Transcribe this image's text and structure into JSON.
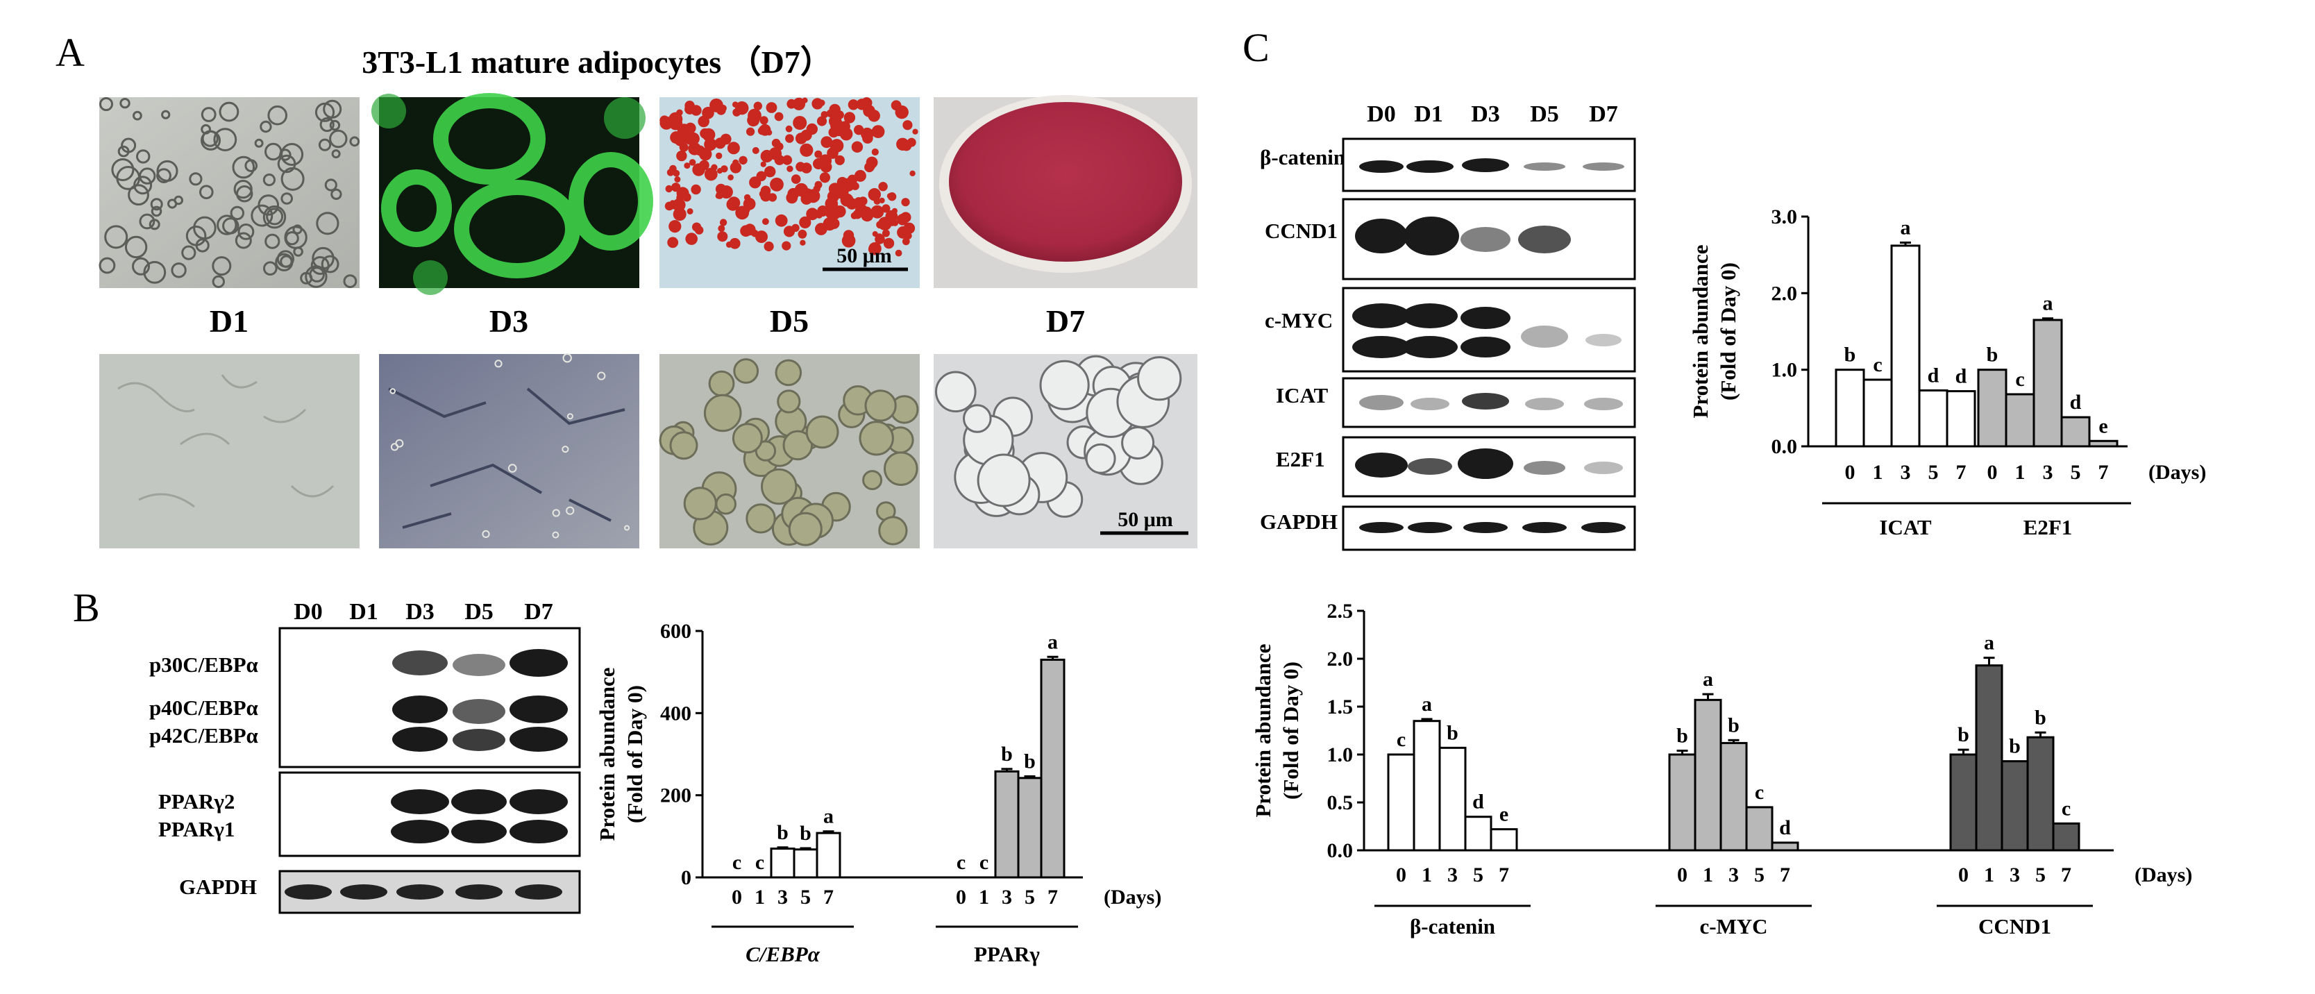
{
  "panels": {
    "A": {
      "letter": "A",
      "title": "3T3-L1 mature adipocytes （D7）",
      "scale_bar_top": "50 μm",
      "scale_bar_bottom": "50 μm",
      "day_labels": [
        "D1",
        "D3",
        "D5",
        "D7"
      ]
    },
    "B": {
      "letter": "B",
      "lane_labels": [
        "D0",
        "D1",
        "D3",
        "D5",
        "D7"
      ],
      "blot_labels": [
        "p30C/EBPα",
        "p40C/EBPα",
        "p42C/EBPα",
        "PPARγ2",
        "PPARγ1",
        "GAPDH"
      ]
    },
    "C": {
      "letter": "C",
      "lane_labels": [
        "D0",
        "D1",
        "D3",
        "D5",
        "D7"
      ],
      "blot_labels": [
        "β-catenin",
        "CCND1",
        "c-MYC",
        "ICAT",
        "E2F1",
        "GAPDH"
      ]
    }
  },
  "chart_data": [
    {
      "id": "chartB",
      "type": "bar",
      "ylabel": "Protein abundance",
      "ylabel2": "(Fold of Day 0)",
      "ylim": [
        0,
        600
      ],
      "yticks": [
        "0",
        "200",
        "400",
        "600"
      ],
      "x_unit": "(Days)",
      "categories": [
        "0",
        "1",
        "3",
        "5",
        "7"
      ],
      "series": [
        {
          "name": "C/EBPα",
          "color": "#ffffff",
          "italic": true,
          "values": [
            0,
            0,
            70,
            68,
            108
          ],
          "errors": [
            0,
            0,
            3,
            3,
            4
          ],
          "letters": [
            "c",
            "c",
            "b",
            "b",
            "a"
          ]
        },
        {
          "name": "PPARγ",
          "color": "#b8b8b8",
          "italic": false,
          "values": [
            0,
            0,
            258,
            242,
            530
          ],
          "errors": [
            0,
            0,
            6,
            4,
            7
          ],
          "letters": [
            "c",
            "c",
            "b",
            "b",
            "a"
          ]
        }
      ]
    },
    {
      "id": "chartC1",
      "type": "bar",
      "ylabel": "Protein abundance",
      "ylabel2": "(Fold of Day 0)",
      "ylim": [
        0,
        3
      ],
      "yticks": [
        "0.0",
        "1.0",
        "2.0",
        "3.0"
      ],
      "x_unit": "(Days)",
      "categories": [
        "0",
        "1",
        "3",
        "5",
        "7"
      ],
      "series": [
        {
          "name": "ICAT",
          "color": "#ffffff",
          "italic": false,
          "values": [
            1.0,
            0.87,
            2.62,
            0.73,
            0.72
          ],
          "errors": [
            0,
            0,
            0.04,
            0,
            0
          ],
          "letters": [
            "b",
            "c",
            "a",
            "d",
            "d"
          ]
        },
        {
          "name": "E2F1",
          "color": "#b8b8b8",
          "italic": false,
          "values": [
            1.0,
            0.68,
            1.65,
            0.38,
            0.07
          ],
          "errors": [
            0,
            0,
            0.02,
            0,
            0
          ],
          "letters": [
            "b",
            "c",
            "a",
            "d",
            "e"
          ]
        }
      ]
    },
    {
      "id": "chartC2",
      "type": "bar",
      "ylabel": "Protein abundance",
      "ylabel2": "(Fold of Day 0)",
      "ylim": [
        0,
        2.5
      ],
      "yticks": [
        "0.0",
        "0.5",
        "1.0",
        "1.5",
        "2.0",
        "2.5"
      ],
      "x_unit": "(Days)",
      "categories": [
        "0",
        "1",
        "3",
        "5",
        "7"
      ],
      "series": [
        {
          "name": "β-catenin",
          "color": "#ffffff",
          "italic": false,
          "values": [
            1.0,
            1.35,
            1.07,
            0.35,
            0.22
          ],
          "errors": [
            0,
            0.02,
            0,
            0,
            0
          ],
          "letters": [
            "c",
            "a",
            "b",
            "d",
            "e"
          ]
        },
        {
          "name": "c-MYC",
          "color": "#b8b8b8",
          "italic": false,
          "values": [
            1.0,
            1.57,
            1.12,
            0.45,
            0.08
          ],
          "errors": [
            0.04,
            0.06,
            0.03,
            0,
            0
          ],
          "letters": [
            "b",
            "a",
            "b",
            "c",
            "d"
          ]
        },
        {
          "name": "CCND1",
          "color": "#595959",
          "italic": false,
          "values": [
            1.0,
            1.93,
            0.93,
            1.18,
            0.28
          ],
          "errors": [
            0.05,
            0.08,
            0,
            0.05,
            0
          ],
          "letters": [
            "b",
            "a",
            "b",
            "b",
            "c"
          ]
        }
      ]
    }
  ]
}
